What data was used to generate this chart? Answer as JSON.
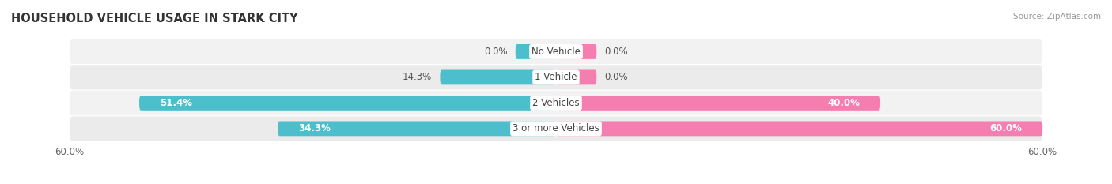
{
  "title": "HOUSEHOLD VEHICLE USAGE IN STARK CITY",
  "source": "Source: ZipAtlas.com",
  "categories": [
    "No Vehicle",
    "1 Vehicle",
    "2 Vehicles",
    "3 or more Vehicles"
  ],
  "owner_values": [
    0.0,
    14.3,
    51.4,
    34.3
  ],
  "renter_values": [
    0.0,
    0.0,
    40.0,
    60.0
  ],
  "owner_color": "#4dbfcc",
  "renter_color": "#f47eb0",
  "row_bg_color": "#f0f0f0",
  "max_val": 60.0,
  "axis_label": "60.0%",
  "title_fontsize": 10.5,
  "label_fontsize": 8.5,
  "tick_fontsize": 8.5,
  "bar_height": 0.58,
  "figsize": [
    14.06,
    2.33
  ],
  "dpi": 100,
  "stub_val": 5.0
}
